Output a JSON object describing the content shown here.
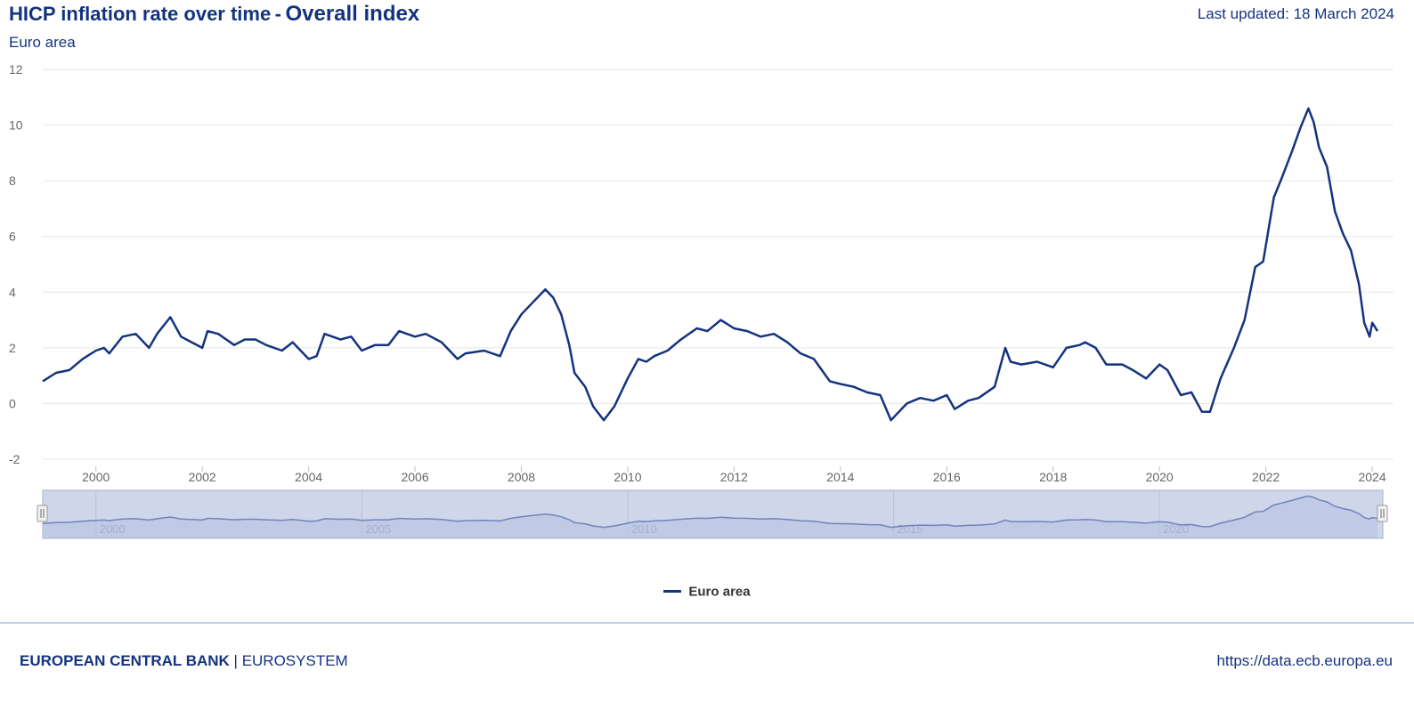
{
  "header": {
    "title": "HICP inflation rate over time",
    "title_separator": "-",
    "title_emphasis": "Overall index",
    "subtitle": "Euro area",
    "last_updated": "Last updated: 18 March 2024"
  },
  "colors": {
    "series": "#14337f",
    "grid": "#e6e6e6",
    "navigator_fill": "#d0d6ea",
    "navigator_line": "#6f84bd",
    "navigator_border": "#a3afd2",
    "axis_text": "#666666"
  },
  "chart_data": {
    "type": "line",
    "title": "HICP inflation rate over time - Overall index",
    "subtitle": "Euro area",
    "ylim": [
      -2,
      12
    ],
    "yticks": [
      -2,
      0,
      2,
      4,
      6,
      8,
      10,
      12
    ],
    "xticks": [
      2000,
      2002,
      2004,
      2006,
      2008,
      2010,
      2012,
      2014,
      2016,
      2018,
      2020,
      2022,
      2024
    ],
    "xlim": [
      1999.0,
      2024.2
    ],
    "grid": true,
    "legend_position": "bottom-center",
    "series": [
      {
        "name": "Euro area",
        "x": [
          1999.0,
          1999.25,
          1999.5,
          1999.75,
          2000.0,
          2000.15,
          2000.25,
          2000.5,
          2000.75,
          2001.0,
          2001.15,
          2001.4,
          2001.6,
          2001.8,
          2002.0,
          2002.1,
          2002.3,
          2002.6,
          2002.8,
          2003.0,
          2003.2,
          2003.5,
          2003.7,
          2004.0,
          2004.15,
          2004.3,
          2004.6,
          2004.8,
          2005.0,
          2005.25,
          2005.5,
          2005.7,
          2006.0,
          2006.2,
          2006.5,
          2006.8,
          2006.95,
          2007.3,
          2007.6,
          2007.8,
          2008.0,
          2008.2,
          2008.45,
          2008.6,
          2008.75,
          2008.9,
          2009.0,
          2009.2,
          2009.35,
          2009.55,
          2009.75,
          2010.0,
          2010.2,
          2010.35,
          2010.5,
          2010.75,
          2011.0,
          2011.3,
          2011.5,
          2011.75,
          2012.0,
          2012.25,
          2012.5,
          2012.75,
          2013.0,
          2013.25,
          2013.5,
          2013.8,
          2014.0,
          2014.25,
          2014.5,
          2014.75,
          2014.95,
          2015.25,
          2015.5,
          2015.75,
          2016.0,
          2016.15,
          2016.4,
          2016.6,
          2016.9,
          2017.1,
          2017.2,
          2017.4,
          2017.7,
          2018.0,
          2018.25,
          2018.5,
          2018.6,
          2018.8,
          2019.0,
          2019.3,
          2019.5,
          2019.75,
          2020.0,
          2020.15,
          2020.4,
          2020.6,
          2020.8,
          2020.95,
          2021.15,
          2021.4,
          2021.6,
          2021.8,
          2021.95,
          2022.15,
          2022.3,
          2022.5,
          2022.65,
          2022.8,
          2022.9,
          2023.0,
          2023.15,
          2023.3,
          2023.45,
          2023.6,
          2023.75,
          2023.85,
          2023.95,
          2024.0,
          2024.1
        ],
        "values": [
          0.8,
          1.1,
          1.2,
          1.6,
          1.9,
          2.0,
          1.8,
          2.4,
          2.5,
          2.0,
          2.5,
          3.1,
          2.4,
          2.2,
          2.0,
          2.6,
          2.5,
          2.1,
          2.3,
          2.3,
          2.1,
          1.9,
          2.2,
          1.6,
          1.7,
          2.5,
          2.3,
          2.4,
          1.9,
          2.1,
          2.1,
          2.6,
          2.4,
          2.5,
          2.2,
          1.6,
          1.8,
          1.9,
          1.7,
          2.6,
          3.2,
          3.6,
          4.1,
          3.8,
          3.2,
          2.1,
          1.1,
          0.6,
          -0.1,
          -0.6,
          -0.1,
          0.9,
          1.6,
          1.5,
          1.7,
          1.9,
          2.3,
          2.7,
          2.6,
          3.0,
          2.7,
          2.6,
          2.4,
          2.5,
          2.2,
          1.8,
          1.6,
          0.8,
          0.7,
          0.6,
          0.4,
          0.3,
          -0.6,
          0.0,
          0.2,
          0.1,
          0.3,
          -0.2,
          0.1,
          0.2,
          0.6,
          2.0,
          1.5,
          1.4,
          1.5,
          1.3,
          2.0,
          2.1,
          2.2,
          2.0,
          1.4,
          1.4,
          1.2,
          0.9,
          1.4,
          1.2,
          0.3,
          0.4,
          -0.3,
          -0.3,
          0.9,
          2.0,
          3.0,
          4.9,
          5.1,
          7.4,
          8.1,
          9.1,
          9.9,
          10.6,
          10.1,
          9.2,
          8.5,
          6.9,
          6.1,
          5.5,
          4.3,
          2.9,
          2.4,
          2.9,
          2.6
        ]
      }
    ],
    "navigator": {
      "labels": [
        "2000",
        "2005",
        "2010",
        "2015",
        "2020"
      ],
      "label_years": [
        2000,
        2005,
        2010,
        2015,
        2020
      ]
    }
  },
  "legend": {
    "label": "Euro area"
  },
  "footer": {
    "bank_name": "EUROPEAN CENTRAL BANK",
    "separator": " | ",
    "system": "EUROSYSTEM",
    "url": "https://data.ecb.europa.eu"
  }
}
